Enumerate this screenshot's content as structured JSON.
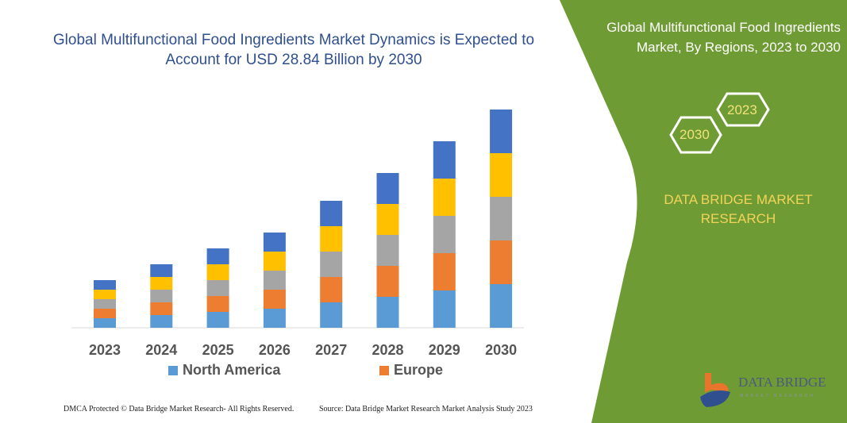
{
  "header": {
    "title": "Global Multifunctional Food Ingredients Market Dynamics is Expected to Account for USD 28.84 Billion by 2030"
  },
  "side_panel": {
    "title": "Global Multifunctional Food Ingredients Market, By Regions, 2023 to 2030",
    "hex_start": "2023",
    "hex_end": "2030",
    "brand": "DATA BRIDGE MARKET RESEARCH",
    "logo_text": "DATA BRIDGE",
    "logo_sub": "MARKET RESEARCH",
    "background_color": "#6f9b34"
  },
  "footer": {
    "left": "DMCA Protected © Data Bridge Market Research- All Rights Reserved.",
    "right": "Source: Data Bridge Market Research Market Analysis Study 2023"
  },
  "chart_data": {
    "type": "bar",
    "stacked": true,
    "categories": [
      "2023",
      "2024",
      "2025",
      "2026",
      "2027",
      "2028",
      "2029",
      "2030"
    ],
    "series": [
      {
        "name": "North America",
        "color": "#5b9bd5",
        "values": [
          12,
          16,
          20,
          24,
          32,
          39,
          47,
          55
        ]
      },
      {
        "name": "Europe",
        "color": "#ed7d31",
        "values": [
          12,
          16,
          20,
          24,
          32,
          39,
          47,
          55
        ]
      },
      {
        "color": "#a5a5a5",
        "values": [
          12,
          16,
          20,
          24,
          32,
          39,
          47,
          55
        ]
      },
      {
        "color": "#ffc000",
        "values": [
          12,
          16,
          20,
          24,
          32,
          39,
          47,
          55
        ]
      },
      {
        "color": "#4472c4",
        "values": [
          12,
          16,
          20,
          24,
          32,
          39,
          47,
          55
        ]
      }
    ],
    "ylim": [
      0,
      280
    ],
    "grid": false,
    "y_axis_visible": false,
    "legend_placement": "bottom"
  }
}
